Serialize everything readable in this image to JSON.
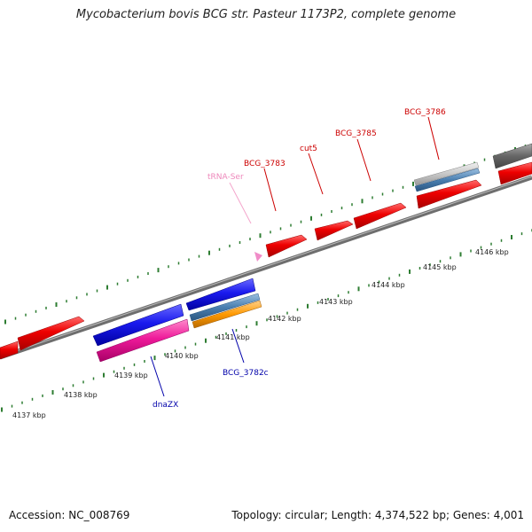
{
  "title": "Mycobacterium bovis BCG str. Pasteur 1173P2, complete genome",
  "footer": {
    "accession": "Accession: NC_008769",
    "summary": "Topology: circular; Length: 4,374,522 bp; Genes: 4,001"
  },
  "kbp_labels": [
    "4137 kbp",
    "4138 kbp",
    "4139 kbp",
    "4140 kbp",
    "4141 kbp",
    "4142 kbp",
    "4143 kbp",
    "4144 kbp",
    "4145 kbp",
    "4146 kbp"
  ],
  "gene_labels": {
    "bcg_3786": "BCG_3786",
    "bcg_3785": "BCG_3785",
    "cut5": "cut5",
    "bcg_3783": "BCG_3783",
    "trna_ser": "tRNA-Ser",
    "bcg_3782c": "BCG_3782c",
    "dnazx": "dnaZX"
  },
  "colors": {
    "forward_gene": "#ee0000",
    "reverse_gene": "#1a1aee",
    "pink_feature": "#ee1a9a",
    "orange_feature": "#ff9900",
    "steelblue_feature": "#4a7fb0",
    "grey_feature": "#777777",
    "tick_green": "#2e7d32",
    "forward_label": "#cc0000",
    "reverse_label": "#0000aa",
    "trna_label": "#ee88bb"
  }
}
